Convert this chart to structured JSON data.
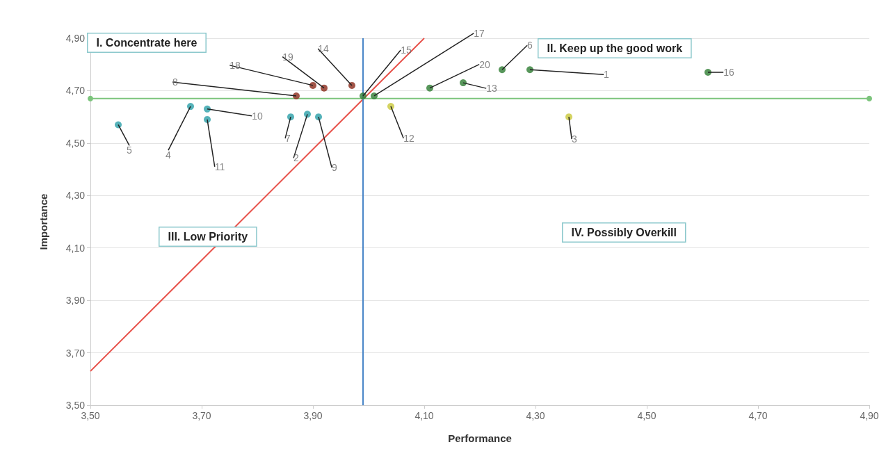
{
  "chart_data": {
    "type": "scatter",
    "xlabel": "Performance",
    "ylabel": "Importance",
    "xlim": [
      3.5,
      4.9
    ],
    "ylim": [
      3.5,
      4.9
    ],
    "xticks": [
      {
        "value": 3.5,
        "label": "3,50"
      },
      {
        "value": 3.7,
        "label": "3,70"
      },
      {
        "value": 3.9,
        "label": "3,90"
      },
      {
        "value": 4.1,
        "label": "4,10"
      },
      {
        "value": 4.3,
        "label": "4,30"
      },
      {
        "value": 4.5,
        "label": "4,50"
      },
      {
        "value": 4.7,
        "label": "4,70"
      },
      {
        "value": 4.9,
        "label": "4,90"
      }
    ],
    "yticks": [
      {
        "value": 3.5,
        "label": "3,50"
      },
      {
        "value": 3.7,
        "label": "3,70"
      },
      {
        "value": 3.9,
        "label": "3,90"
      },
      {
        "value": 4.1,
        "label": "4,10"
      },
      {
        "value": 4.3,
        "label": "4,30"
      },
      {
        "value": 4.5,
        "label": "4,50"
      },
      {
        "value": 4.7,
        "label": "4,70"
      },
      {
        "value": 4.9,
        "label": "4,90"
      }
    ],
    "grid": "y",
    "marker": "circle",
    "series": [
      {
        "color": "#2a9fa8",
        "x": [
          3.89,
          3.68,
          3.55,
          3.86,
          3.91,
          3.71,
          3.71
        ],
        "values": [
          4.61,
          4.64,
          4.57,
          4.6,
          4.6,
          4.63,
          4.59
        ]
      },
      {
        "color": "#8b2a1a",
        "x": [
          3.87,
          3.97,
          3.9,
          3.92
        ],
        "values": [
          4.68,
          4.72,
          4.72,
          4.71
        ]
      },
      {
        "color": "#2e7d32",
        "x": [
          4.29,
          4.24,
          4.17,
          3.99,
          4.61,
          4.01,
          4.11
        ],
        "values": [
          4.78,
          4.78,
          4.73,
          4.68,
          4.77,
          4.68,
          4.71
        ]
      },
      {
        "color": "#c9c83a",
        "x": [
          4.36,
          4.04
        ],
        "values": [
          4.6,
          4.64
        ]
      },
      {
        "type": "line",
        "color": "#e8554e",
        "marker": "none",
        "x": [
          3.5,
          4.1
        ],
        "values": [
          3.63,
          4.9
        ]
      },
      {
        "type": "line",
        "color": "#4a86c8",
        "marker": "none",
        "x": [
          3.99,
          3.99
        ],
        "values": [
          3.5,
          4.9
        ]
      },
      {
        "type": "line",
        "color": "#7cc47c",
        "marker": "circle",
        "x": [
          3.5,
          4.9
        ],
        "values": [
          4.67,
          4.67
        ]
      }
    ],
    "annotations": [
      "I. Concentrate here",
      "II. Keep up the good work",
      "III. Low Priority",
      "IV. Possibly Overkill",
      {
        "text": "1",
        "x": 4.29,
        "y": 4.78
      },
      {
        "text": "2",
        "x": 3.89,
        "y": 4.61
      },
      {
        "text": "3",
        "x": 4.36,
        "y": 4.6
      },
      {
        "text": "4",
        "x": 3.68,
        "y": 4.64
      },
      {
        "text": "5",
        "x": 3.55,
        "y": 4.57
      },
      {
        "text": "6",
        "x": 4.24,
        "y": 4.78
      },
      {
        "text": "7",
        "x": 3.86,
        "y": 4.6
      },
      {
        "text": "8",
        "x": 3.87,
        "y": 4.68
      },
      {
        "text": "9",
        "x": 3.91,
        "y": 4.6
      },
      {
        "text": "10",
        "x": 3.71,
        "y": 4.63
      },
      {
        "text": "11",
        "x": 3.71,
        "y": 4.59
      },
      {
        "text": "12",
        "x": 4.04,
        "y": 4.64
      },
      {
        "text": "13",
        "x": 4.17,
        "y": 4.73
      },
      {
        "text": "14",
        "x": 3.97,
        "y": 4.72
      },
      {
        "text": "15",
        "x": 3.99,
        "y": 4.68
      },
      {
        "text": "16",
        "x": 4.61,
        "y": 4.77
      },
      {
        "text": "17",
        "x": 4.01,
        "y": 4.68
      },
      {
        "text": "18",
        "x": 3.9,
        "y": 4.72
      },
      {
        "text": "19",
        "x": 3.92,
        "y": 4.71
      },
      {
        "text": "20",
        "x": 4.11,
        "y": 4.71
      }
    ]
  }
}
